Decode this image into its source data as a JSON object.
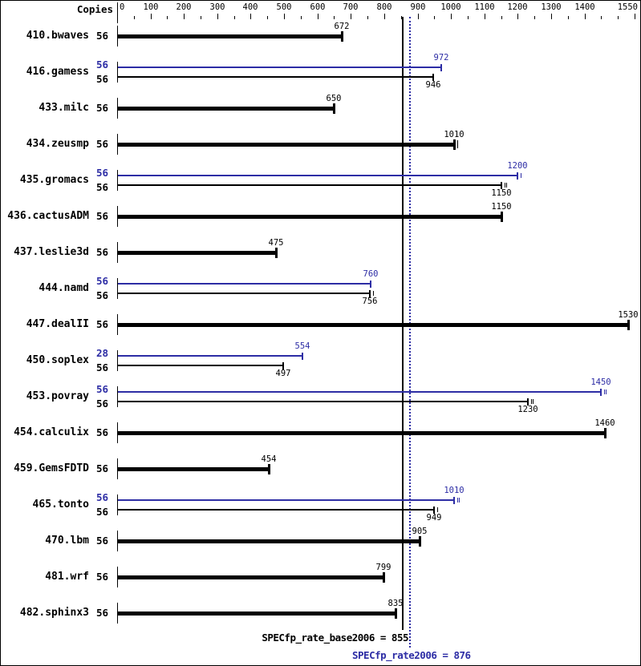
{
  "header": {
    "copies_label": "Copies"
  },
  "colors": {
    "base": "#000000",
    "peak": "#2d2da5",
    "background": "#ffffff",
    "border": "#000000"
  },
  "footer": {
    "base_text": "SPECfp_rate_base2006 = 855",
    "peak_text": "SPECfp_rate2006 = 876"
  },
  "chart_data": {
    "type": "bar",
    "orientation": "horizontal",
    "title": "",
    "xlabel": "",
    "ylabel": "Copies",
    "xlim": [
      0,
      1550
    ],
    "x_major_ticks": [
      0,
      100,
      200,
      300,
      400,
      500,
      600,
      700,
      800,
      900,
      1000,
      1100,
      1200,
      1300,
      1400,
      1550
    ],
    "x_minor_tick_step": 50,
    "grid": false,
    "legend_position": "none",
    "reference_lines": [
      {
        "name": "SPECfp_rate_base2006",
        "value": 855,
        "style": "solid",
        "color": "#000000"
      },
      {
        "name": "SPECfp_rate2006",
        "value": 876,
        "style": "dotted",
        "color": "#2d2da5"
      }
    ],
    "series_legend": [
      {
        "name": "peak",
        "color": "#2d2da5"
      },
      {
        "name": "base",
        "color": "#000000"
      }
    ],
    "benchmarks": [
      {
        "name": "410.bwaves",
        "bars": [
          {
            "series": "base",
            "copies": 56,
            "value": 672,
            "run_marks": 0
          }
        ]
      },
      {
        "name": "416.gamess",
        "bars": [
          {
            "series": "peak",
            "copies": 56,
            "value": 972,
            "run_marks": 0
          },
          {
            "series": "base",
            "copies": 56,
            "value": 946,
            "run_marks": 0
          }
        ]
      },
      {
        "name": "433.milc",
        "bars": [
          {
            "series": "base",
            "copies": 56,
            "value": 650,
            "run_marks": 0
          }
        ]
      },
      {
        "name": "434.zeusmp",
        "bars": [
          {
            "series": "base",
            "copies": 56,
            "value": 1010,
            "run_marks": 1
          }
        ]
      },
      {
        "name": "435.gromacs",
        "bars": [
          {
            "series": "peak",
            "copies": 56,
            "value": 1200,
            "run_marks": 1
          },
          {
            "series": "base",
            "copies": 56,
            "value": 1150,
            "run_marks": 2
          }
        ]
      },
      {
        "name": "436.cactusADM",
        "bars": [
          {
            "series": "base",
            "copies": 56,
            "value": 1150,
            "run_marks": 0
          }
        ]
      },
      {
        "name": "437.leslie3d",
        "bars": [
          {
            "series": "base",
            "copies": 56,
            "value": 475,
            "run_marks": 0
          }
        ]
      },
      {
        "name": "444.namd",
        "bars": [
          {
            "series": "peak",
            "copies": 56,
            "value": 760,
            "run_marks": 0
          },
          {
            "series": "base",
            "copies": 56,
            "value": 756,
            "run_marks": 1
          }
        ]
      },
      {
        "name": "447.dealII",
        "bars": [
          {
            "series": "base",
            "copies": 56,
            "value": 1530,
            "run_marks": 0
          }
        ]
      },
      {
        "name": "450.soplex",
        "bars": [
          {
            "series": "peak",
            "copies": 28,
            "value": 554,
            "run_marks": 0
          },
          {
            "series": "base",
            "copies": 56,
            "value": 497,
            "run_marks": 0
          }
        ]
      },
      {
        "name": "453.povray",
        "bars": [
          {
            "series": "peak",
            "copies": 56,
            "value": 1450,
            "run_marks": 2
          },
          {
            "series": "base",
            "copies": 56,
            "value": 1230,
            "run_marks": 2
          }
        ]
      },
      {
        "name": "454.calculix",
        "bars": [
          {
            "series": "base",
            "copies": 56,
            "value": 1460,
            "run_marks": 0
          }
        ]
      },
      {
        "name": "459.GemsFDTD",
        "bars": [
          {
            "series": "base",
            "copies": 56,
            "value": 454,
            "run_marks": 0
          }
        ]
      },
      {
        "name": "465.tonto",
        "bars": [
          {
            "series": "peak",
            "copies": 56,
            "value": 1010,
            "run_marks": 2
          },
          {
            "series": "base",
            "copies": 56,
            "value": 949,
            "run_marks": 1
          }
        ]
      },
      {
        "name": "470.lbm",
        "bars": [
          {
            "series": "base",
            "copies": 56,
            "value": 905,
            "run_marks": 0
          }
        ]
      },
      {
        "name": "481.wrf",
        "bars": [
          {
            "series": "base",
            "copies": 56,
            "value": 799,
            "run_marks": 0
          }
        ]
      },
      {
        "name": "482.sphinx3",
        "bars": [
          {
            "series": "base",
            "copies": 56,
            "value": 835,
            "run_marks": 0
          }
        ]
      }
    ]
  }
}
